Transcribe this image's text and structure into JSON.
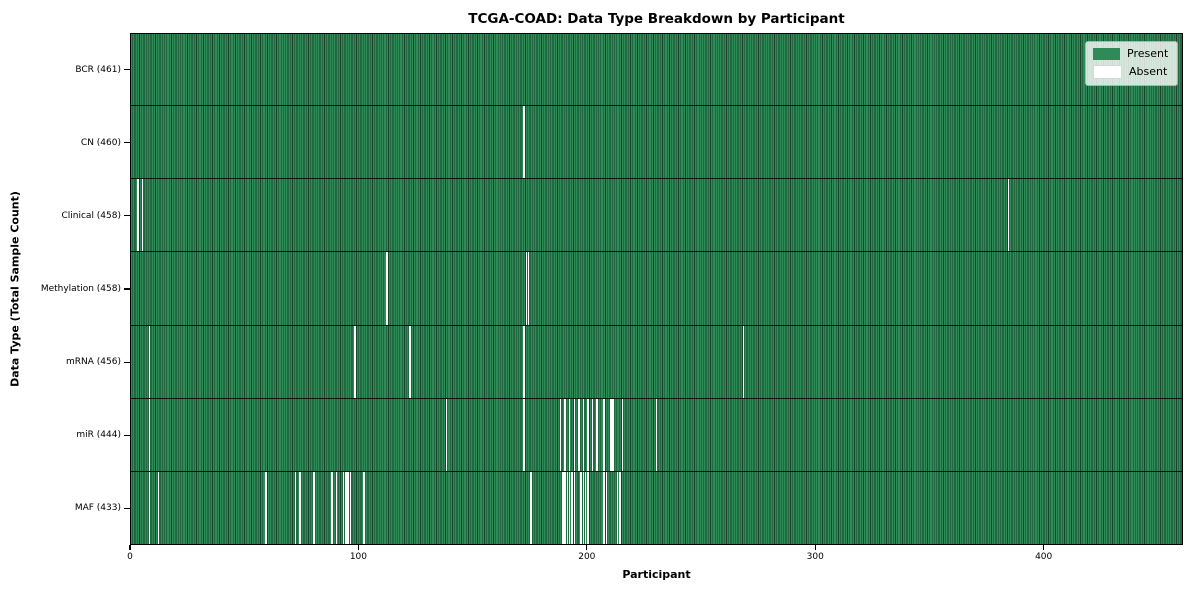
{
  "title": "TCGA-COAD: Data Type Breakdown by Participant",
  "x_axis": {
    "label": "Participant",
    "ticks": [
      0,
      100,
      200,
      300,
      400
    ]
  },
  "y_axis": {
    "label": "Data Type (Total Sample Count)"
  },
  "legend": {
    "items": [
      {
        "label": "Present",
        "color": "#2e8b57"
      },
      {
        "label": "Absent",
        "color": "#ffffff"
      }
    ]
  },
  "colors": {
    "present": "#2e8b57",
    "absent": "#ffffff",
    "row_separator": "#1a1a1a",
    "frame": "#000000"
  },
  "chart_data": {
    "type": "heatmap",
    "title": "TCGA-COAD: Data Type Breakdown by Participant",
    "xlabel": "Participant",
    "ylabel": "Data Type (Total Sample Count)",
    "legend_entries": [
      "Present",
      "Absent"
    ],
    "legend_position": "upper right",
    "n_participants": 461,
    "x_ticks": [
      0,
      100,
      200,
      300,
      400
    ],
    "present_color": "#2e8b57",
    "absent_color": "#ffffff",
    "rows": [
      {
        "label": "BCR (461)",
        "data_type": "BCR",
        "total_samples": 461,
        "absent_participants": []
      },
      {
        "label": "CN (460)",
        "data_type": "CN",
        "total_samples": 460,
        "absent_participants": [
          172
        ]
      },
      {
        "label": "Clinical (458)",
        "data_type": "Clinical",
        "total_samples": 458,
        "absent_participants": [
          3,
          5,
          384
        ]
      },
      {
        "label": "Methylation (458)",
        "data_type": "Methylation",
        "total_samples": 458,
        "absent_participants": [
          112,
          173,
          174
        ]
      },
      {
        "label": "mRNA (456)",
        "data_type": "mRNA",
        "total_samples": 456,
        "absent_participants": [
          8,
          98,
          122,
          172,
          268
        ]
      },
      {
        "label": "miR (444)",
        "data_type": "miR",
        "total_samples": 444,
        "absent_participants": [
          8,
          138,
          172,
          188,
          190,
          192,
          194,
          196,
          198,
          200,
          202,
          204,
          207,
          210,
          211,
          215,
          230
        ]
      },
      {
        "label": "MAF (433)",
        "data_type": "MAF",
        "total_samples": 433,
        "absent_participants": [
          8,
          12,
          59,
          72,
          74,
          80,
          88,
          90,
          93,
          94,
          95,
          96,
          102,
          175,
          189,
          190,
          191,
          192,
          193,
          194,
          197,
          198,
          199,
          200,
          207,
          208,
          213,
          214
        ]
      }
    ]
  }
}
